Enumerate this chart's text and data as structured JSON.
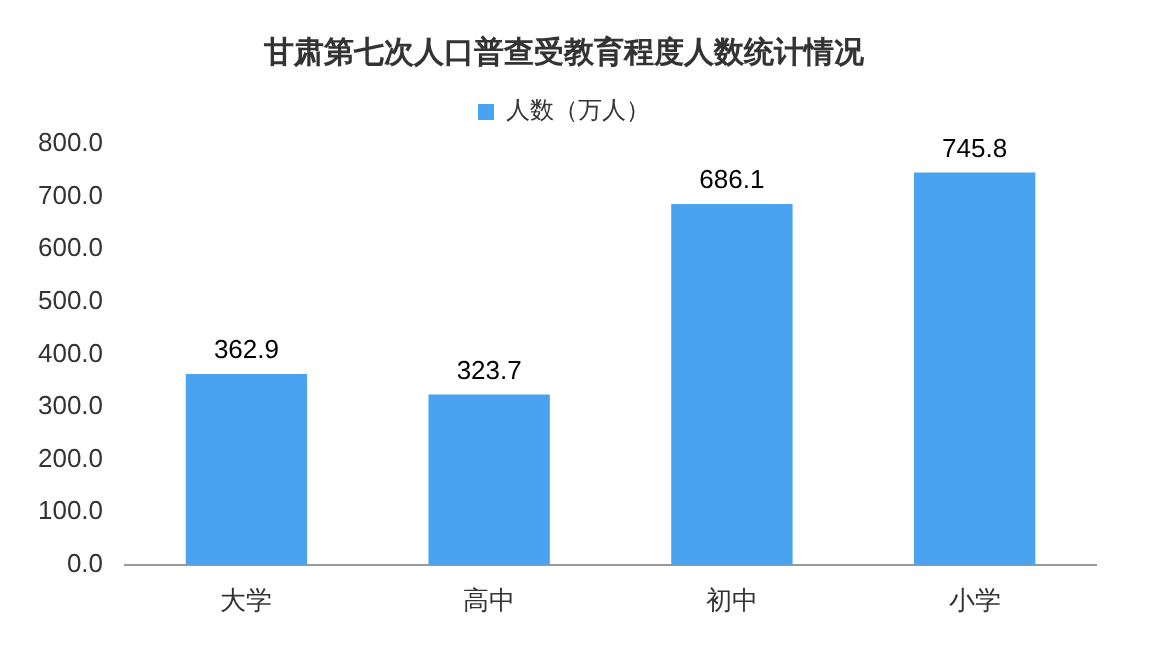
{
  "chart_data": {
    "type": "bar",
    "title": "甘肃第七次人口普查受教育程度人数统计情况",
    "categories": [
      "大学",
      "高中",
      "初中",
      "小学"
    ],
    "series": [
      {
        "name": "人数（万人）",
        "color": "#4aa3f0",
        "values": [
          362.9,
          323.7,
          686.1,
          745.8
        ]
      }
    ],
    "ylim": [
      0,
      800
    ],
    "yticks": [
      {
        "value": 0,
        "label": "0.0"
      },
      {
        "value": 100,
        "label": "100.0"
      },
      {
        "value": 200,
        "label": "200.0"
      },
      {
        "value": 300,
        "label": "300.0"
      },
      {
        "value": 400,
        "label": "400.0"
      },
      {
        "value": 500,
        "label": "500.0"
      },
      {
        "value": 600,
        "label": "600.0"
      },
      {
        "value": 700,
        "label": "700.0"
      },
      {
        "value": 800,
        "label": "800.0"
      }
    ],
    "data_labels": true,
    "grid": false,
    "legend": "top"
  }
}
